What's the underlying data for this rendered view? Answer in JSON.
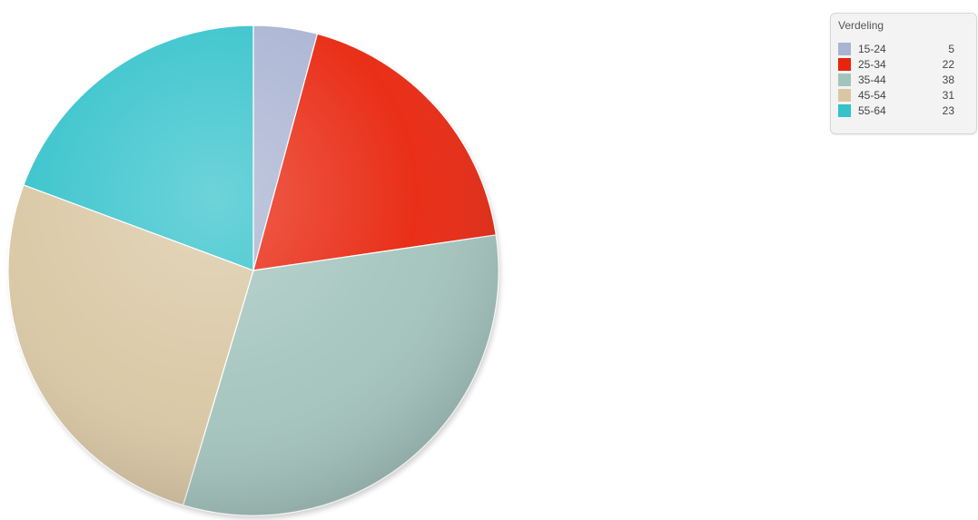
{
  "chart_data": {
    "type": "pie",
    "title": "",
    "legend": {
      "title": "Verdeling",
      "position": "top-right"
    },
    "categories": [
      "15-24",
      "25-34",
      "35-44",
      "45-54",
      "55-64"
    ],
    "values": [
      5,
      22,
      38,
      31,
      23
    ],
    "colors": [
      "#a9b3d2",
      "#e8240c",
      "#a3c4bd",
      "#d9c7a3",
      "#34c2cb"
    ]
  }
}
